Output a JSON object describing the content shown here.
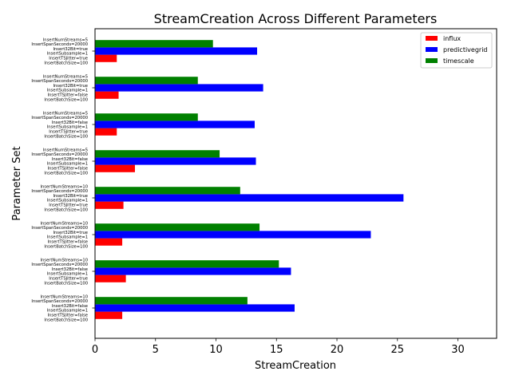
{
  "chart_data": {
    "type": "bar",
    "orientation": "horizontal",
    "title": "StreamCreation Across Different Parameters",
    "xlabel": "StreamCreation",
    "ylabel": "Parameter Set",
    "xlim": [
      0,
      33.2
    ],
    "xticks": [
      0,
      5,
      10,
      15,
      20,
      25,
      30
    ],
    "legend_position": "top-right",
    "categories": [
      [
        "InsertNumStreams=5",
        "InsertSpanSeconds=20000",
        "Insert32Bit=true",
        "InsertSubsample=1",
        "InsertTSJitter=true",
        "InsertBatchSize=100"
      ],
      [
        "InsertNumStreams=5",
        "InsertSpanSeconds=20000",
        "Insert32Bit=true",
        "InsertSubsample=1",
        "InsertTSJitter=false",
        "InsertBatchSize=100"
      ],
      [
        "InsertNumStreams=5",
        "InsertSpanSeconds=20000",
        "Insert32Bit=false",
        "InsertSubsample=1",
        "InsertTSJitter=true",
        "InsertBatchSize=100"
      ],
      [
        "InsertNumStreams=5",
        "InsertSpanSeconds=20000",
        "Insert32Bit=false",
        "InsertSubsample=1",
        "InsertTSJitter=false",
        "InsertBatchSize=100"
      ],
      [
        "InsertNumStreams=10",
        "InsertSpanSeconds=20000",
        "Insert32Bit=true",
        "InsertSubsample=1",
        "InsertTSJitter=true",
        "InsertBatchSize=100"
      ],
      [
        "InsertNumStreams=10",
        "InsertSpanSeconds=20000",
        "Insert32Bit=true",
        "InsertSubsample=1",
        "InsertTSJitter=false",
        "InsertBatchSize=100"
      ],
      [
        "InsertNumStreams=10",
        "InsertSpanSeconds=20000",
        "Insert32Bit=false",
        "InsertSubsample=1",
        "InsertTSJitter=true",
        "InsertBatchSize=100"
      ],
      [
        "InsertNumStreams=10",
        "InsertSpanSeconds=20000",
        "Insert32Bit=false",
        "InsertSubsample=1",
        "InsertTSJitter=false",
        "InsertBatchSize=100"
      ]
    ],
    "series": [
      {
        "name": "influx",
        "color": "#ff0000",
        "values": [
          1.8,
          1.95,
          1.8,
          3.3,
          2.35,
          2.25,
          2.55,
          2.25
        ]
      },
      {
        "name": "predictivegrid",
        "color": "#0000ff",
        "values": [
          13.4,
          13.9,
          13.2,
          13.3,
          25.5,
          22.8,
          16.2,
          16.5
        ]
      },
      {
        "name": "timescale",
        "color": "#008000",
        "values": [
          9.75,
          8.5,
          8.5,
          10.3,
          12.0,
          13.6,
          15.2,
          12.6
        ]
      }
    ]
  }
}
